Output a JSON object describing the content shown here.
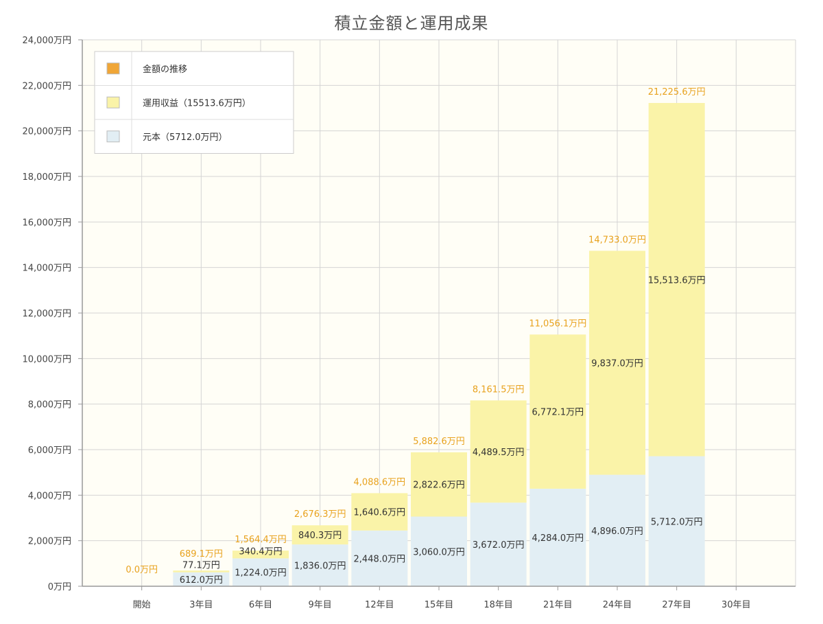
{
  "chart_data": {
    "type": "bar",
    "stacked": true,
    "title": "積立金額と運用成果",
    "categories": [
      "開始",
      "3年目",
      "6年目",
      "9年目",
      "12年目",
      "15年目",
      "18年目",
      "21年目",
      "24年目",
      "27年目",
      "30年目"
    ],
    "y_ticks": [
      "0万円",
      "2,000万円",
      "4,000万円",
      "6,000万円",
      "8,000万円",
      "10,000万円",
      "12,000万円",
      "14,000万円",
      "16,000万円",
      "18,000万円",
      "20,000万円",
      "22,000万円",
      "24,000万円"
    ],
    "ylim": [
      0,
      24000
    ],
    "grid": true,
    "legend_position": "top-left",
    "legend": [
      {
        "label": "金額の推移",
        "color": "#F0A637"
      },
      {
        "label": "運用収益（15513.6万円）",
        "color": "#FAF3A8"
      },
      {
        "label": "元本（5712.0万円）",
        "color": "#E2EEF4"
      }
    ],
    "series": [
      {
        "name": "元本",
        "color": "#E2EEF4",
        "values": [
          0,
          612.0,
          1224.0,
          1836.0,
          2448.0,
          3060.0,
          3672.0,
          4284.0,
          4896.0,
          5712.0,
          null
        ],
        "labels": [
          "",
          "612.0万円",
          "1,224.0万円",
          "1,836.0万円",
          "2,448.0万円",
          "3,060.0万円",
          "3,672.0万円",
          "4,284.0万円",
          "4,896.0万円",
          "5,712.0万円",
          ""
        ]
      },
      {
        "name": "運用収益",
        "color": "#FAF3A8",
        "values": [
          0,
          77.1,
          340.4,
          840.3,
          1640.6,
          2822.6,
          4489.5,
          6772.1,
          9837.0,
          15513.6,
          null
        ],
        "labels": [
          "",
          "77.1万円",
          "340.4万円",
          "840.3万円",
          "1,640.6万円",
          "2,822.6万円",
          "4,489.5万円",
          "6,772.1万円",
          "9,837.0万円",
          "15,513.6万円",
          ""
        ]
      }
    ],
    "totals": {
      "color": "#E8A21E",
      "values": [
        0.0,
        689.1,
        1564.4,
        2676.3,
        4088.6,
        5882.6,
        8161.5,
        11056.1,
        14733.0,
        21225.6,
        null
      ],
      "labels": [
        "0.0万円",
        "689.1万円",
        "1,564.4万円",
        "2,676.3万円",
        "4,088.6万円",
        "5,882.6万円",
        "8,161.5万円",
        "11,056.1万円",
        "14,733.0万円",
        "21,225.6万円",
        ""
      ]
    }
  }
}
